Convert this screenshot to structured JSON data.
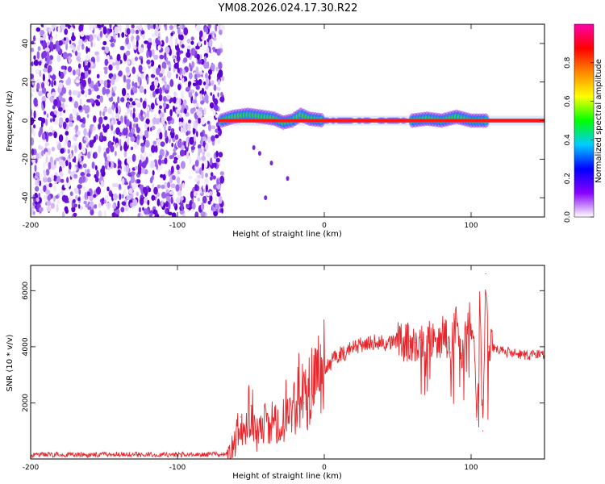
{
  "title": "YM08.2026.024.17.30.R22",
  "chart_data": [
    {
      "type": "heatmap",
      "xlabel": "Height of straight line (km)",
      "ylabel": "Frequency (Hz)",
      "xlim": [
        -200,
        150
      ],
      "ylim": [
        -50,
        50
      ],
      "xticks": [
        -200,
        -100,
        0,
        100
      ],
      "yticks": [
        -40,
        -20,
        0,
        20,
        40
      ],
      "colorbar": {
        "label": "Normalized spectral amplitude",
        "range": [
          0.0,
          1.0
        ],
        "ticks": [
          0.0,
          0.2,
          0.4,
          0.6,
          0.8
        ],
        "tick_labels": [
          "0.0",
          "0.2",
          "0.4",
          "0.6",
          "0.8"
        ],
        "colors": [
          "#ffffff",
          "#8800ff",
          "#0000ff",
          "#00ccff",
          "#00ff00",
          "#ffff00",
          "#ff8800",
          "#ff0000",
          "#ff00aa"
        ]
      },
      "noise_region_x": [
        -200,
        -69
      ],
      "signal_line_x": [
        -72,
        150
      ],
      "signal_freq": 0,
      "signal_trace": [
        {
          "x": -70,
          "y": 0
        },
        {
          "x": -62,
          "y": 2
        },
        {
          "x": -52,
          "y": 3
        },
        {
          "x": -42,
          "y": 2
        },
        {
          "x": -34,
          "y": 1
        },
        {
          "x": -28,
          "y": -1
        },
        {
          "x": -22,
          "y": 0
        },
        {
          "x": -16,
          "y": 3
        },
        {
          "x": -10,
          "y": 1
        },
        {
          "x": 0,
          "y": 0
        },
        {
          "x": 60,
          "y": 0
        },
        {
          "x": 70,
          "y": 1
        },
        {
          "x": 80,
          "y": 0
        },
        {
          "x": 90,
          "y": 2
        },
        {
          "x": 100,
          "y": 0
        },
        {
          "x": 112,
          "y": 0
        }
      ],
      "grid": false
    },
    {
      "type": "line",
      "xlabel": "Height of straight line (km)",
      "ylabel": "SNR (10 * v/v)",
      "xlim": [
        -200,
        150
      ],
      "ylim": [
        0,
        6900
      ],
      "xticks": [
        -200,
        -100,
        0,
        100
      ],
      "yticks": [
        2000,
        4000,
        6000
      ],
      "series": [
        {
          "color": "#e8252a",
          "x": [
            -200,
            -180,
            -160,
            -140,
            -120,
            -100,
            -80,
            -66,
            -60,
            -57,
            -54,
            -50,
            -46,
            -42,
            -38,
            -34,
            -30,
            -26,
            -22,
            -18,
            -14,
            -10,
            -6,
            -2,
            2,
            6,
            10,
            14,
            18,
            22,
            26,
            30,
            34,
            38,
            42,
            46,
            50,
            54,
            58,
            62,
            66,
            70,
            74,
            78,
            82,
            86,
            90,
            94,
            98,
            102,
            104,
            106,
            108,
            110,
            112,
            116,
            120,
            126,
            132,
            138,
            144,
            150
          ],
          "y": [
            150,
            160,
            140,
            170,
            150,
            160,
            170,
            180,
            700,
            1500,
            1000,
            1900,
            800,
            1400,
            900,
            1600,
            700,
            1800,
            1200,
            2700,
            2000,
            2500,
            3000,
            3200,
            3300,
            3500,
            3700,
            3800,
            3900,
            4000,
            4050,
            4100,
            4150,
            4200,
            4100,
            4150,
            4250,
            4100,
            4200,
            4150,
            4250,
            4200,
            4300,
            4150,
            4600,
            3800,
            5000,
            3700,
            5200,
            4200,
            1400,
            5600,
            1000,
            6600,
            4000,
            3900,
            3850,
            3800,
            3750,
            3700,
            3700,
            3750
          ]
        }
      ],
      "grid": false
    }
  ]
}
